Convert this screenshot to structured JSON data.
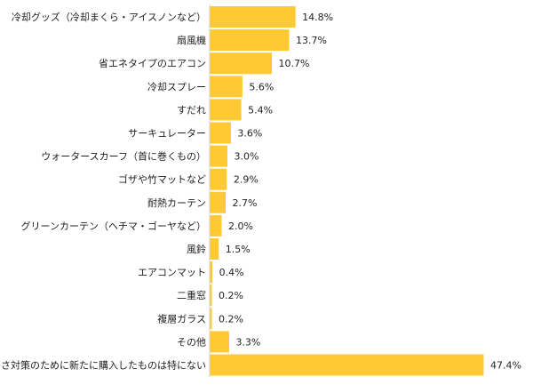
{
  "colors": {
    "bar": "#FFC933",
    "axis": "#d0d0d0",
    "text": "#222222"
  },
  "chart_data": {
    "type": "bar",
    "orientation": "horizontal",
    "title": "",
    "xlabel": "",
    "ylabel": "",
    "grid": false,
    "legend": "none",
    "xlim": [
      0,
      47.4
    ],
    "categories": [
      "冷却グッズ（冷却まくら・アイスノンなど）",
      "扇風機",
      "省エネタイプのエアコン",
      "冷却スプレー",
      "すだれ",
      "サーキュレーター",
      "ウォータースカーフ（首に巻くもの）",
      "ゴザや竹マットなど",
      "耐熱カーテン",
      "グリーンカーテン（ヘチマ・ゴーヤなど）",
      "風鈴",
      "エアコンマット",
      "二重窓",
      "複層ガラス",
      "その他",
      "暑さ対策のために新たに購入したものは特にない"
    ],
    "values": [
      14.8,
      13.7,
      10.7,
      5.6,
      5.4,
      3.6,
      3.0,
      2.9,
      2.7,
      2.0,
      1.5,
      0.4,
      0.2,
      0.2,
      3.3,
      47.4
    ],
    "value_labels": [
      "14.8%",
      "13.7%",
      "10.7%",
      "5.6%",
      "5.4%",
      "3.6%",
      "3.0%",
      "2.9%",
      "2.7%",
      "2.0%",
      "1.5%",
      "0.4%",
      "0.2%",
      "0.2%",
      "3.3%",
      "47.4%"
    ]
  }
}
